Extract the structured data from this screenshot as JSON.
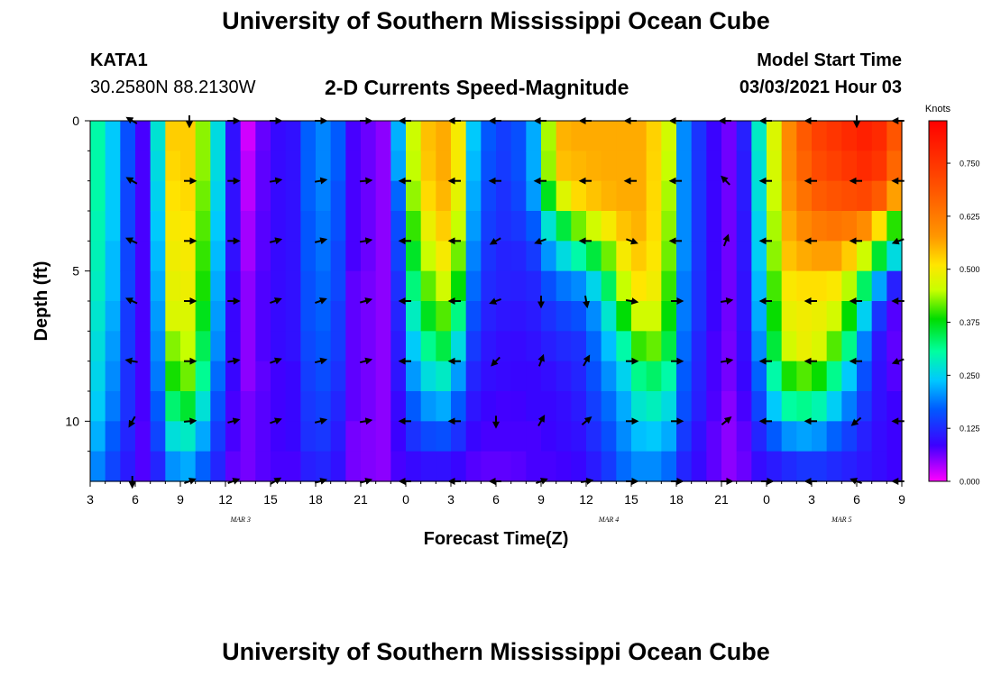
{
  "header": {
    "title": "University of Southern Mississippi Ocean Cube",
    "station_id": "KATA1",
    "station_coords": "30.2580N 88.2130W",
    "chart_title": "2-D Currents Speed-Magnitude",
    "model_start_label": "Model Start Time",
    "model_start_value": "03/03/2021 Hour 03"
  },
  "footer": {
    "title": "University of Southern Mississippi Ocean Cube"
  },
  "chart_data": {
    "type": "heatmap",
    "title": "2-D Currents Speed-Magnitude",
    "xlabel": "Forecast Time(Z)",
    "ylabel": "Depth (ft)",
    "x_range_hours": [
      0,
      54
    ],
    "y_range_ft": [
      0,
      12
    ],
    "x_ticks": [
      {
        "h": 0,
        "label": "3"
      },
      {
        "h": 3,
        "label": "6"
      },
      {
        "h": 6,
        "label": "9"
      },
      {
        "h": 9,
        "label": "12"
      },
      {
        "h": 12,
        "label": "15"
      },
      {
        "h": 15,
        "label": "18"
      },
      {
        "h": 18,
        "label": "21"
      },
      {
        "h": 21,
        "label": "0"
      },
      {
        "h": 24,
        "label": "3"
      },
      {
        "h": 27,
        "label": "6"
      },
      {
        "h": 30,
        "label": "9"
      },
      {
        "h": 33,
        "label": "12"
      },
      {
        "h": 36,
        "label": "15"
      },
      {
        "h": 39,
        "label": "18"
      },
      {
        "h": 42,
        "label": "21"
      },
      {
        "h": 45,
        "label": "0"
      },
      {
        "h": 48,
        "label": "3"
      },
      {
        "h": 51,
        "label": "6"
      },
      {
        "h": 54,
        "label": "9"
      }
    ],
    "date_labels": [
      {
        "h": 10,
        "label": "MAR 3"
      },
      {
        "h": 34.5,
        "label": "MAR 4"
      },
      {
        "h": 50,
        "label": "MAR 5"
      }
    ],
    "y_ticks": [
      {
        "ft": 0,
        "label": "0"
      },
      {
        "ft": 5,
        "label": "5"
      },
      {
        "ft": 10,
        "label": "10"
      }
    ],
    "colorbar": {
      "label": "Knots",
      "range": [
        0,
        0.85
      ],
      "ticks": [
        "0.000",
        "0.125",
        "0.250",
        "0.375",
        "0.500",
        "0.625",
        "0.750"
      ]
    },
    "depth_bins_ft": [
      0.5,
      1.5,
      2.5,
      3.5,
      4.5,
      5.5,
      6.5,
      7.5,
      8.5,
      9.5,
      10.5,
      11.5
    ],
    "speed_profiles": [
      {
        "h": 0.0,
        "v": [
          0.33,
          0.33,
          0.33,
          0.32,
          0.32,
          0.31,
          0.3,
          0.29,
          0.28,
          0.27,
          0.25,
          0.22
        ]
      },
      {
        "h": 1.5,
        "v": [
          0.24,
          0.24,
          0.24,
          0.24,
          0.23,
          0.23,
          0.22,
          0.21,
          0.2,
          0.19,
          0.17,
          0.15
        ]
      },
      {
        "h": 2.5,
        "v": [
          0.16,
          0.16,
          0.15,
          0.15,
          0.15,
          0.15,
          0.14,
          0.14,
          0.13,
          0.13,
          0.12,
          0.11
        ]
      },
      {
        "h": 3.0,
        "v": [
          0.08,
          0.08,
          0.08,
          0.08,
          0.08,
          0.08,
          0.08,
          0.08,
          0.08,
          0.08,
          0.07,
          0.07
        ]
      },
      {
        "h": 3.8,
        "v": [
          0.08,
          0.08,
          0.08,
          0.08,
          0.08,
          0.08,
          0.08,
          0.08,
          0.08,
          0.08,
          0.08,
          0.08
        ]
      },
      {
        "h": 4.5,
        "v": [
          0.27,
          0.26,
          0.25,
          0.24,
          0.23,
          0.22,
          0.21,
          0.2,
          0.19,
          0.17,
          0.15,
          0.12
        ]
      },
      {
        "h": 5.2,
        "v": [
          0.53,
          0.52,
          0.51,
          0.5,
          0.49,
          0.48,
          0.47,
          0.42,
          0.38,
          0.32,
          0.26,
          0.2
        ]
      },
      {
        "h": 6.5,
        "v": [
          0.53,
          0.53,
          0.52,
          0.51,
          0.5,
          0.49,
          0.47,
          0.45,
          0.42,
          0.36,
          0.28,
          0.22
        ]
      },
      {
        "h": 7.8,
        "v": [
          0.4,
          0.4,
          0.39,
          0.38,
          0.37,
          0.36,
          0.34,
          0.31,
          0.28,
          0.24,
          0.2,
          0.16
        ]
      },
      {
        "h": 8.5,
        "v": [
          0.26,
          0.26,
          0.25,
          0.24,
          0.23,
          0.22,
          0.21,
          0.2,
          0.18,
          0.16,
          0.14,
          0.12
        ]
      },
      {
        "h": 9.5,
        "v": [
          0.1,
          0.1,
          0.1,
          0.1,
          0.1,
          0.09,
          0.09,
          0.09,
          0.09,
          0.08,
          0.08,
          0.07
        ]
      },
      {
        "h": 10.5,
        "v": [
          0.02,
          0.03,
          0.03,
          0.04,
          0.04,
          0.05,
          0.05,
          0.05,
          0.05,
          0.06,
          0.06,
          0.06
        ]
      },
      {
        "h": 12.0,
        "v": [
          0.09,
          0.09,
          0.09,
          0.09,
          0.09,
          0.09,
          0.09,
          0.09,
          0.08,
          0.08,
          0.08,
          0.08
        ]
      },
      {
        "h": 13.5,
        "v": [
          0.1,
          0.1,
          0.1,
          0.1,
          0.1,
          0.1,
          0.1,
          0.1,
          0.09,
          0.09,
          0.09,
          0.08
        ]
      },
      {
        "h": 15.0,
        "v": [
          0.21,
          0.21,
          0.21,
          0.2,
          0.2,
          0.19,
          0.19,
          0.18,
          0.17,
          0.16,
          0.15,
          0.13
        ]
      },
      {
        "h": 16.5,
        "v": [
          0.17,
          0.17,
          0.16,
          0.16,
          0.15,
          0.15,
          0.14,
          0.14,
          0.13,
          0.12,
          0.11,
          0.1
        ]
      },
      {
        "h": 17.5,
        "v": [
          0.08,
          0.08,
          0.08,
          0.08,
          0.08,
          0.07,
          0.07,
          0.07,
          0.07,
          0.07,
          0.06,
          0.06
        ]
      },
      {
        "h": 19.5,
        "v": [
          0.05,
          0.05,
          0.05,
          0.05,
          0.05,
          0.05,
          0.05,
          0.05,
          0.05,
          0.05,
          0.05,
          0.05
        ]
      },
      {
        "h": 20.3,
        "v": [
          0.18,
          0.17,
          0.12,
          0.1,
          0.1,
          0.09,
          0.09,
          0.09,
          0.09,
          0.08,
          0.08,
          0.08
        ]
      },
      {
        "h": 21.0,
        "v": [
          0.33,
          0.33,
          0.32,
          0.3,
          0.27,
          0.23,
          0.19,
          0.16,
          0.14,
          0.12,
          0.1,
          0.08
        ]
      },
      {
        "h": 21.8,
        "v": [
          0.53,
          0.52,
          0.5,
          0.46,
          0.42,
          0.38,
          0.34,
          0.29,
          0.25,
          0.2,
          0.15,
          0.1
        ]
      },
      {
        "h": 23.5,
        "v": [
          0.56,
          0.56,
          0.55,
          0.53,
          0.5,
          0.46,
          0.41,
          0.35,
          0.28,
          0.22,
          0.16,
          0.1
        ]
      },
      {
        "h": 24.5,
        "v": [
          0.5,
          0.5,
          0.48,
          0.45,
          0.42,
          0.38,
          0.32,
          0.26,
          0.21,
          0.17,
          0.13,
          0.09
        ]
      },
      {
        "h": 25.0,
        "v": [
          0.3,
          0.29,
          0.28,
          0.27,
          0.25,
          0.23,
          0.2,
          0.17,
          0.14,
          0.12,
          0.1,
          0.08
        ]
      },
      {
        "h": 26.0,
        "v": [
          0.18,
          0.17,
          0.16,
          0.15,
          0.14,
          0.13,
          0.12,
          0.11,
          0.1,
          0.09,
          0.08,
          0.07
        ]
      },
      {
        "h": 28.0,
        "v": [
          0.13,
          0.13,
          0.12,
          0.12,
          0.11,
          0.11,
          0.1,
          0.09,
          0.09,
          0.08,
          0.08,
          0.07
        ]
      },
      {
        "h": 29.5,
        "v": [
          0.22,
          0.22,
          0.21,
          0.17,
          0.14,
          0.12,
          0.11,
          0.1,
          0.09,
          0.09,
          0.08,
          0.08
        ]
      },
      {
        "h": 31.0,
        "v": [
          0.55,
          0.54,
          0.45,
          0.32,
          0.24,
          0.18,
          0.14,
          0.12,
          0.1,
          0.09,
          0.09,
          0.08
        ]
      },
      {
        "h": 32.5,
        "v": [
          0.56,
          0.55,
          0.52,
          0.42,
          0.3,
          0.2,
          0.16,
          0.13,
          0.12,
          0.11,
          0.1,
          0.09
        ]
      },
      {
        "h": 34.0,
        "v": [
          0.56,
          0.56,
          0.55,
          0.48,
          0.38,
          0.28,
          0.22,
          0.2,
          0.18,
          0.16,
          0.14,
          0.12
        ]
      },
      {
        "h": 35.5,
        "v": [
          0.56,
          0.56,
          0.56,
          0.54,
          0.5,
          0.45,
          0.38,
          0.3,
          0.25,
          0.22,
          0.2,
          0.18
        ]
      },
      {
        "h": 37.0,
        "v": [
          0.56,
          0.56,
          0.56,
          0.56,
          0.55,
          0.54,
          0.5,
          0.45,
          0.35,
          0.3,
          0.25,
          0.21
        ]
      },
      {
        "h": 38.5,
        "v": [
          0.46,
          0.45,
          0.44,
          0.43,
          0.42,
          0.4,
          0.38,
          0.35,
          0.3,
          0.26,
          0.22,
          0.18
        ]
      },
      {
        "h": 39.5,
        "v": [
          0.2,
          0.2,
          0.2,
          0.2,
          0.2,
          0.19,
          0.19,
          0.18,
          0.17,
          0.16,
          0.14,
          0.12
        ]
      },
      {
        "h": 41.0,
        "v": [
          0.1,
          0.1,
          0.1,
          0.1,
          0.1,
          0.1,
          0.1,
          0.09,
          0.09,
          0.09,
          0.08,
          0.08
        ]
      },
      {
        "h": 43.0,
        "v": [
          0.05,
          0.05,
          0.05,
          0.05,
          0.05,
          0.05,
          0.05,
          0.05,
          0.05,
          0.04,
          0.04,
          0.04
        ]
      },
      {
        "h": 44.0,
        "v": [
          0.18,
          0.17,
          0.17,
          0.16,
          0.16,
          0.15,
          0.15,
          0.14,
          0.13,
          0.12,
          0.1,
          0.09
        ]
      },
      {
        "h": 45.0,
        "v": [
          0.38,
          0.37,
          0.36,
          0.34,
          0.33,
          0.31,
          0.29,
          0.26,
          0.22,
          0.18,
          0.14,
          0.1
        ]
      },
      {
        "h": 46.0,
        "v": [
          0.56,
          0.56,
          0.55,
          0.54,
          0.53,
          0.5,
          0.48,
          0.45,
          0.38,
          0.3,
          0.2,
          0.12
        ]
      },
      {
        "h": 48.0,
        "v": [
          0.72,
          0.7,
          0.67,
          0.62,
          0.57,
          0.52,
          0.5,
          0.5,
          0.42,
          0.32,
          0.22,
          0.14
        ]
      },
      {
        "h": 50.0,
        "v": [
          0.76,
          0.74,
          0.7,
          0.64,
          0.57,
          0.5,
          0.45,
          0.38,
          0.28,
          0.22,
          0.16,
          0.12
        ]
      },
      {
        "h": 52.0,
        "v": [
          0.8,
          0.78,
          0.72,
          0.58,
          0.42,
          0.28,
          0.18,
          0.13,
          0.12,
          0.11,
          0.1,
          0.1
        ]
      },
      {
        "h": 53.0,
        "v": [
          0.74,
          0.72,
          0.64,
          0.45,
          0.3,
          0.15,
          0.09,
          0.08,
          0.08,
          0.09,
          0.09,
          0.09
        ]
      },
      {
        "h": 54.0,
        "v": [
          0.64,
          0.6,
          0.5,
          0.34,
          0.22,
          0.08,
          0.06,
          0.06,
          0.07,
          0.08,
          0.08,
          0.08
        ]
      }
    ],
    "vector_depths_ft": [
      0,
      2,
      4,
      6,
      8,
      10,
      12
    ],
    "vector_columns": [
      {
        "h": 2.8,
        "a": [
          150,
          150,
          155,
          155,
          170,
          240,
          270
        ]
      },
      {
        "h": 6.6,
        "a": [
          270,
          0,
          0,
          0,
          0,
          5,
          20
        ]
      },
      {
        "h": 9.5,
        "a": [
          0,
          0,
          0,
          0,
          10,
          15,
          20
        ]
      },
      {
        "h": 12.3,
        "a": [
          0,
          10,
          15,
          20,
          20,
          20,
          30
        ]
      },
      {
        "h": 15.3,
        "a": [
          0,
          10,
          15,
          20,
          15,
          15,
          15
        ]
      },
      {
        "h": 18.3,
        "a": [
          0,
          5,
          10,
          15,
          15,
          10,
          15
        ]
      },
      {
        "h": 21.0,
        "a": [
          180,
          180,
          180,
          180,
          180,
          180,
          180
        ]
      },
      {
        "h": 24.3,
        "a": [
          180,
          180,
          180,
          180,
          180,
          180,
          180
        ]
      },
      {
        "h": 27.0,
        "a": [
          180,
          180,
          210,
          200,
          225,
          270,
          180
        ]
      },
      {
        "h": 30.0,
        "a": [
          180,
          180,
          200,
          270,
          70,
          60,
          20
        ]
      },
      {
        "h": 33.0,
        "a": [
          180,
          180,
          180,
          280,
          60,
          40,
          10
        ]
      },
      {
        "h": 36.0,
        "a": [
          180,
          180,
          340,
          350,
          0,
          0,
          0
        ]
      },
      {
        "h": 39.0,
        "a": [
          180,
          180,
          180,
          0,
          0,
          0,
          0
        ]
      },
      {
        "h": 42.3,
        "a": [
          180,
          135,
          70,
          10,
          10,
          40,
          0
        ]
      },
      {
        "h": 45.0,
        "a": [
          180,
          180,
          180,
          180,
          180,
          180,
          0
        ]
      },
      {
        "h": 48.0,
        "a": [
          180,
          180,
          180,
          180,
          180,
          180,
          180
        ]
      },
      {
        "h": 51.0,
        "a": [
          270,
          180,
          180,
          180,
          180,
          220,
          160
        ]
      },
      {
        "h": 53.8,
        "a": [
          180,
          180,
          200,
          180,
          200,
          180,
          180
        ]
      }
    ]
  }
}
